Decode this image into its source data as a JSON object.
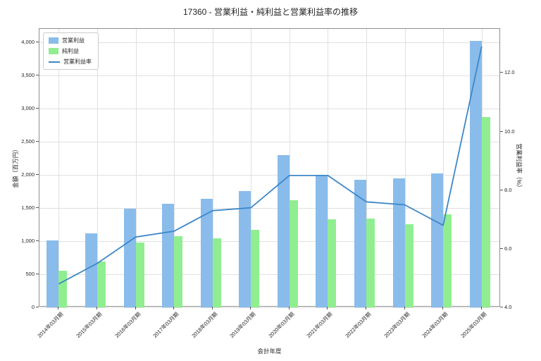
{
  "title": "17360 - 営業利益・純利益と営業利益率の推移",
  "chart_data": {
    "type": "bar",
    "subtype": "grouped-bars-with-line",
    "categories": [
      "2014年03月期",
      "2015年03月期",
      "2016年03月期",
      "2017年03月期",
      "2018年03月期",
      "2019年03月期",
      "2020年03月期",
      "2021年03月期",
      "2022年03月期",
      "2023年03月期",
      "2024年03月期",
      "2025年03月期"
    ],
    "series": [
      {
        "name": "営業利益",
        "type": "bar",
        "axis": "left",
        "color": "#89bceb",
        "values": [
          1010,
          1120,
          1490,
          1560,
          1640,
          1760,
          2300,
          2000,
          1920,
          1950,
          2020,
          4020
        ]
      },
      {
        "name": "純利益",
        "type": "bar",
        "axis": "left",
        "color": "#90ee90",
        "values": [
          550,
          690,
          980,
          1070,
          1040,
          1170,
          1620,
          1330,
          1340,
          1250,
          1400,
          2870
        ]
      },
      {
        "name": "営業利益率",
        "type": "line",
        "axis": "right",
        "color": "#3d87c9",
        "values": [
          4.8,
          5.5,
          6.4,
          6.6,
          7.3,
          7.4,
          8.5,
          8.5,
          7.6,
          7.5,
          6.8,
          12.9
        ]
      }
    ],
    "xlabel": "会計年度",
    "ylabel_left": "金額（百万円）",
    "ylabel_right": "営業利益率（%）",
    "ylim_left": [
      0,
      4200
    ],
    "ylim_right": [
      4.0,
      13.5
    ],
    "ytick_values_left": [
      0,
      500,
      1000,
      1500,
      2000,
      2500,
      3000,
      3500,
      4000
    ],
    "yticks_left": [
      "0",
      "500",
      "1,000",
      "1,500",
      "2,000",
      "2,500",
      "3,000",
      "3,500",
      "4,000"
    ],
    "ytick_values_right": [
      4.0,
      6.0,
      8.0,
      10.0,
      12.0
    ],
    "yticks_right": [
      "4.0",
      "6.0",
      "8.0",
      "10.0",
      "12.0"
    ],
    "grid": true,
    "legend_position": "upper left"
  }
}
